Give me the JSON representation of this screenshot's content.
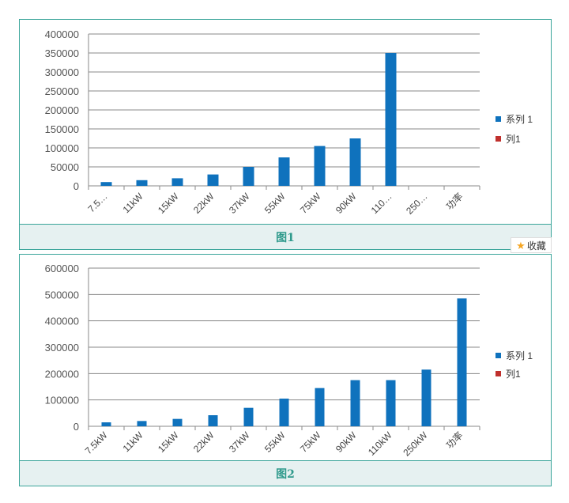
{
  "chart_data": [
    {
      "type": "bar",
      "categories": [
        "7.5…",
        "11kW",
        "15kW",
        "22kW",
        "37kW",
        "55kW",
        "75kW",
        "90kW",
        "110…",
        "250…",
        "功率"
      ],
      "series": [
        {
          "name": "系列 1",
          "values": [
            10000,
            15000,
            20000,
            30000,
            50000,
            75000,
            105000,
            125000,
            350000,
            null,
            null
          ]
        },
        {
          "name": "列1",
          "values": [
            null,
            null,
            null,
            null,
            null,
            null,
            null,
            null,
            null,
            null,
            null
          ]
        }
      ],
      "yticks": [
        "0",
        "50000",
        "100000",
        "150000",
        "200000",
        "250000",
        "300000",
        "350000",
        "400000"
      ],
      "ylim": [
        0,
        400000
      ],
      "grid": true,
      "legend": "right",
      "colors": {
        "series1": "#0f72bd",
        "series2": "#c0302d"
      },
      "caption": "图1"
    },
    {
      "type": "bar",
      "categories": [
        "7.5kW",
        "11kW",
        "15kW",
        "22kW",
        "37kW",
        "55kW",
        "75kW",
        "90kW",
        "110kW",
        "250kW",
        "功率"
      ],
      "series": [
        {
          "name": "系列 1",
          "values": [
            15000,
            20000,
            28000,
            42000,
            70000,
            105000,
            145000,
            175000,
            175000,
            215000,
            485000
          ]
        },
        {
          "name": "列1",
          "values": [
            null,
            null,
            null,
            null,
            null,
            null,
            null,
            null,
            null,
            null,
            null
          ]
        }
      ],
      "yticks": [
        "0",
        "100000",
        "200000",
        "300000",
        "400000",
        "500000",
        "600000"
      ],
      "ylim": [
        0,
        600000
      ],
      "grid": true,
      "legend": "right",
      "colors": {
        "series1": "#0f72bd",
        "series2": "#c0302d"
      },
      "caption": "图2"
    }
  ],
  "save_button": {
    "label": "收藏",
    "icon": "star-icon"
  }
}
